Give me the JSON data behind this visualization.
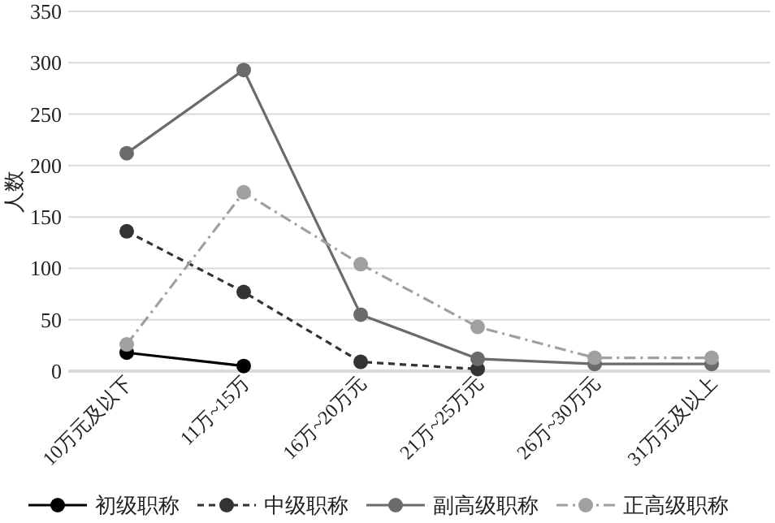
{
  "chart_data": {
    "type": "line",
    "ylabel": "人数",
    "categories": [
      "10万元及以下",
      "11万~15万",
      "16万~20万元",
      "21万~25万元",
      "26万~30万元",
      "31万元及以上"
    ],
    "ylim": [
      0,
      350
    ],
    "yticks": [
      0,
      50,
      100,
      150,
      200,
      250,
      300,
      350
    ],
    "grid": "y",
    "legend": "bottom",
    "marker": "circle",
    "series": [
      {
        "name": "初级职称",
        "color": "#000000",
        "line_style": "solid",
        "values": [
          18,
          5,
          null,
          null,
          null,
          null
        ]
      },
      {
        "name": "中级职称",
        "color": "#333333",
        "line_style": "dashed",
        "values": [
          136,
          77,
          9,
          2,
          null,
          null
        ]
      },
      {
        "name": "副高级职称",
        "color": "#6b6b6b",
        "line_style": "solid",
        "values": [
          212,
          293,
          55,
          12,
          7,
          7
        ]
      },
      {
        "name": "正高级职称",
        "color": "#a0a0a0",
        "line_style": "dashdot",
        "values": [
          26,
          174,
          104,
          43,
          13,
          13
        ]
      }
    ]
  }
}
